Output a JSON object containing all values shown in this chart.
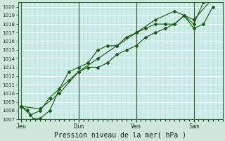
{
  "xlabel": "Pression niveau de la mer( hPa )",
  "bg_color": "#cce8dd",
  "plot_bg": "#cceee8",
  "grid_color": "#aaddcc",
  "line_color": "#1a5c1a",
  "spine_color": "#336633",
  "ylim": [
    1007,
    1020.5
  ],
  "yticks": [
    1007,
    1008,
    1009,
    1010,
    1011,
    1012,
    1013,
    1014,
    1015,
    1016,
    1017,
    1018,
    1019,
    1020
  ],
  "day_labels": [
    "Jeu",
    "Dim",
    "Ven",
    "Sam"
  ],
  "day_positions": [
    0.0,
    3.0,
    6.0,
    9.0
  ],
  "xlim": [
    -0.15,
    10.5
  ],
  "series1_x": [
    0.0,
    0.33,
    0.66,
    1.0,
    1.5,
    2.0,
    2.5,
    3.0,
    3.5,
    4.0,
    4.5,
    5.0,
    5.5,
    6.0,
    6.5,
    7.0,
    7.5,
    8.0,
    8.5,
    9.0,
    9.5,
    10.0,
    10.3
  ],
  "series1_y": [
    1008.5,
    1008.1,
    1007.0,
    1007.1,
    1008.0,
    1010.5,
    1011.5,
    1012.5,
    1013.0,
    1013.0,
    1013.5,
    1014.5,
    1015.0,
    1015.5,
    1016.5,
    1017.0,
    1017.5,
    1018.0,
    1019.0,
    1018.0,
    1020.5,
    1021.0,
    1021.5
  ],
  "series2_x": [
    0.0,
    0.5,
    1.0,
    1.5,
    2.0,
    2.5,
    3.0,
    3.5,
    4.0,
    4.5,
    5.0,
    5.5,
    6.0,
    6.5,
    7.0,
    7.5,
    8.0,
    8.5,
    9.0,
    9.5,
    10.0
  ],
  "series2_y": [
    1008.5,
    1007.5,
    1008.0,
    1009.5,
    1010.5,
    1012.5,
    1013.0,
    1013.5,
    1015.0,
    1015.5,
    1015.5,
    1016.5,
    1017.0,
    1017.5,
    1018.0,
    1018.0,
    1018.0,
    1019.0,
    1017.5,
    1018.0,
    1020.0
  ],
  "series3_x": [
    0.0,
    1.0,
    2.0,
    3.0,
    4.0,
    5.0,
    6.0,
    7.0,
    8.0,
    9.0,
    10.0,
    10.3
  ],
  "series3_y": [
    1008.5,
    1008.2,
    1010.0,
    1012.5,
    1014.0,
    1015.5,
    1017.0,
    1018.5,
    1019.5,
    1018.5,
    1021.0,
    1021.5
  ]
}
